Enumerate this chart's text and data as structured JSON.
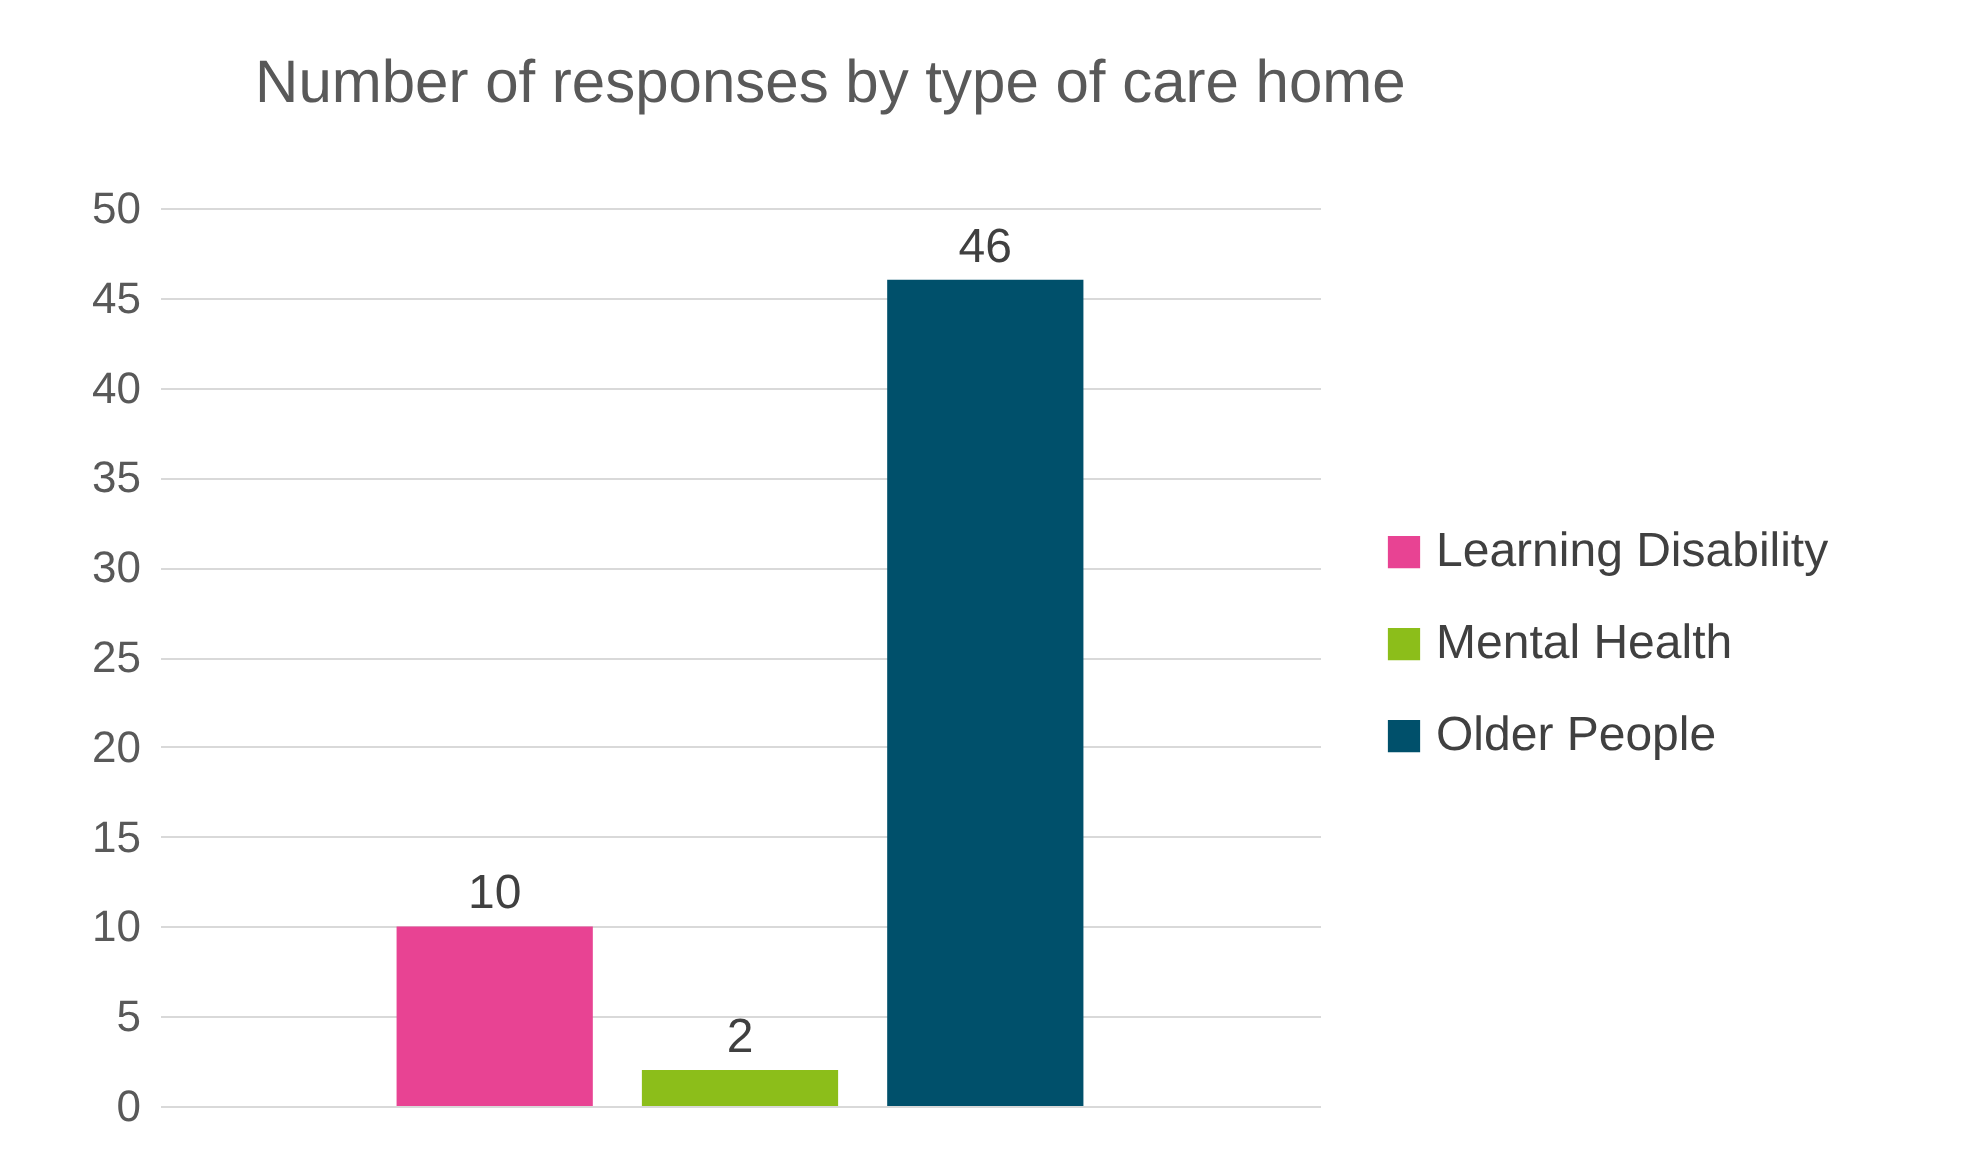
{
  "chart_data": {
    "type": "bar",
    "title": "Number of responses by type of care home",
    "categories": [
      null
    ],
    "series": [
      {
        "name": "Learning Disability",
        "color": "#e84393",
        "values": [
          10
        ]
      },
      {
        "name": "Mental Health",
        "color": "#8cbe1a",
        "values": [
          2
        ]
      },
      {
        "name": "Older People",
        "color": "#00506b",
        "values": [
          46
        ]
      }
    ],
    "ylim": [
      0,
      50
    ],
    "yticks": [
      0,
      5,
      10,
      15,
      20,
      25,
      30,
      35,
      40,
      45,
      50
    ],
    "grid": "y",
    "legend": "right",
    "data_labels": true
  }
}
